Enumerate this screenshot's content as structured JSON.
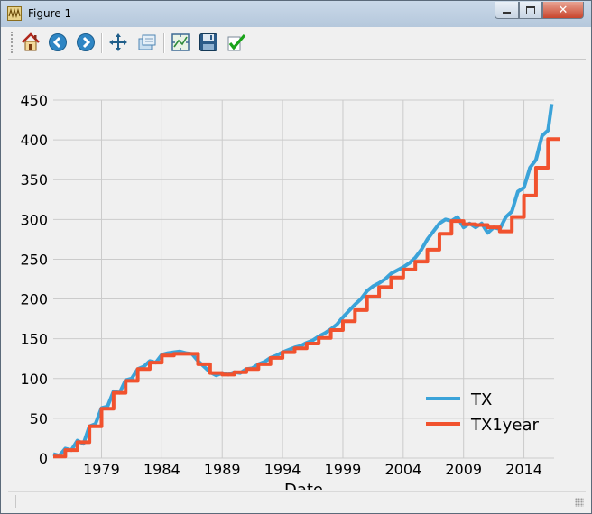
{
  "window": {
    "title": "Figure 1",
    "controls": [
      "minimize",
      "maximize",
      "close"
    ]
  },
  "toolbar": {
    "buttons": [
      {
        "name": "home",
        "icon": "home-icon"
      },
      {
        "name": "back",
        "icon": "back-arrow-icon"
      },
      {
        "name": "forward",
        "icon": "forward-arrow-icon"
      },
      {
        "name": "pan",
        "icon": "pan-icon"
      },
      {
        "name": "zoom",
        "icon": "zoom-icon"
      },
      {
        "name": "subplots",
        "icon": "subplots-icon"
      },
      {
        "name": "save",
        "icon": "save-icon"
      },
      {
        "name": "edit",
        "icon": "edit-checkmark-icon"
      }
    ]
  },
  "chart_data": {
    "type": "line",
    "xlabel": "Date",
    "ylabel": "",
    "title": "",
    "x_ticks": [
      "1979",
      "1984",
      "1989",
      "1994",
      "1999",
      "2004",
      "2009",
      "2014"
    ],
    "y_ticks": [
      "0",
      "50",
      "100",
      "150",
      "200",
      "250",
      "300",
      "350",
      "400",
      "450"
    ],
    "xlim": [
      1975.0,
      2016.5
    ],
    "ylim": [
      0,
      450
    ],
    "grid": true,
    "legend_position": "lower-right",
    "series": [
      {
        "name": "TX",
        "color": "#3ba3d9",
        "style": "smooth",
        "x": [
          1975.0,
          1975.5,
          1976.0,
          1976.5,
          1977.0,
          1977.5,
          1978.0,
          1978.5,
          1979.0,
          1979.5,
          1980.0,
          1980.5,
          1981.0,
          1981.5,
          1982.0,
          1982.5,
          1983.0,
          1983.5,
          1984.0,
          1984.5,
          1985.0,
          1985.5,
          1986.0,
          1986.5,
          1987.0,
          1987.5,
          1988.0,
          1988.5,
          1989.0,
          1989.5,
          1990.0,
          1990.5,
          1991.0,
          1991.5,
          1992.0,
          1992.5,
          1993.0,
          1993.5,
          1994.0,
          1994.5,
          1995.0,
          1995.5,
          1996.0,
          1996.5,
          1997.0,
          1997.5,
          1998.0,
          1998.5,
          1999.0,
          1999.5,
          2000.0,
          2000.5,
          2001.0,
          2001.5,
          2002.0,
          2002.5,
          2003.0,
          2003.5,
          2004.0,
          2004.5,
          2005.0,
          2005.5,
          2006.0,
          2006.5,
          2007.0,
          2007.5,
          2008.0,
          2008.5,
          2009.0,
          2009.5,
          2010.0,
          2010.5,
          2011.0,
          2011.5,
          2012.0,
          2012.5,
          2013.0,
          2013.5,
          2014.0,
          2014.5,
          2015.0,
          2015.5,
          2016.0,
          2016.3
        ],
        "values": [
          5,
          3,
          12,
          10,
          22,
          18,
          40,
          43,
          63,
          65,
          84,
          82,
          98,
          100,
          112,
          115,
          122,
          120,
          130,
          132,
          133,
          134,
          132,
          131,
          122,
          115,
          108,
          104,
          107,
          105,
          108,
          107,
          112,
          113,
          118,
          121,
          126,
          129,
          133,
          136,
          139,
          141,
          145,
          148,
          153,
          157,
          162,
          168,
          177,
          185,
          193,
          200,
          210,
          216,
          220,
          225,
          232,
          236,
          240,
          245,
          252,
          262,
          275,
          285,
          295,
          300,
          298,
          303,
          290,
          295,
          290,
          295,
          283,
          290,
          288,
          303,
          310,
          335,
          340,
          365,
          375,
          405,
          412,
          445
        ]
      },
      {
        "name": "TX1year",
        "color": "#f1522e",
        "style": "step",
        "x": [
          1975,
          1976,
          1977,
          1978,
          1979,
          1980,
          1981,
          1982,
          1983,
          1984,
          1985,
          1986,
          1987,
          1988,
          1989,
          1990,
          1991,
          1992,
          1993,
          1994,
          1995,
          1996,
          1997,
          1998,
          1999,
          2000,
          2001,
          2002,
          2003,
          2004,
          2005,
          2006,
          2007,
          2008,
          2009,
          2010,
          2011,
          2012,
          2013,
          2014,
          2015,
          2016
        ],
        "values": [
          2,
          10,
          20,
          40,
          62,
          82,
          97,
          112,
          120,
          129,
          131,
          131,
          118,
          107,
          105,
          108,
          112,
          118,
          126,
          133,
          138,
          144,
          151,
          161,
          172,
          186,
          203,
          215,
          227,
          237,
          247,
          262,
          282,
          298,
          294,
          293,
          290,
          285,
          303,
          330,
          365,
          401
        ]
      }
    ]
  }
}
